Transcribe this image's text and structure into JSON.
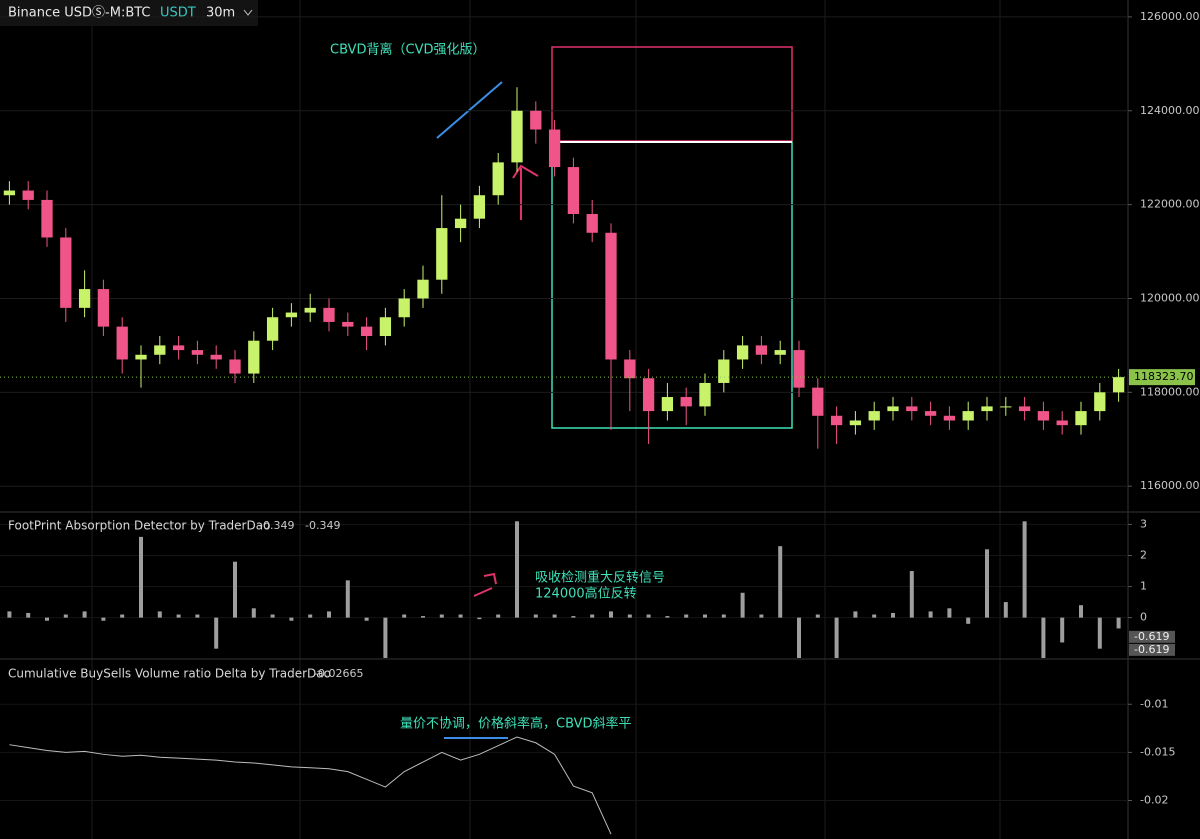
{
  "toolbar": {
    "symbol": "Binance USDⓈ-M:BTC",
    "quote": "USDT",
    "interval": "30m"
  },
  "chart_data": [
    {
      "type": "candlestick",
      "annotations": [
        "CBVD背离（CVD强化版）"
      ],
      "open": [
        122200,
        122300,
        122100,
        121300,
        119800,
        120200,
        119400,
        118700,
        118800,
        119000,
        118900,
        118800,
        118700,
        118400,
        119100,
        119600,
        119700,
        119800,
        119500,
        119400,
        119200,
        119600,
        120000,
        120400,
        121500,
        121700,
        122200,
        122900,
        124000,
        123600,
        122800,
        121800,
        121400,
        118700,
        118300,
        117600,
        117900,
        117700,
        118200,
        118700,
        119000,
        118800,
        118900,
        118100,
        117500,
        117300,
        117400,
        117600,
        117700,
        117600,
        117500,
        117400,
        117600,
        117700,
        117700,
        117600,
        117400,
        117300,
        117600,
        118000
      ],
      "high": [
        122500,
        122500,
        122300,
        121500,
        120600,
        120400,
        119600,
        119000,
        119200,
        119200,
        119100,
        119000,
        118900,
        119300,
        119800,
        119900,
        120100,
        120000,
        119700,
        119600,
        119800,
        120200,
        120700,
        122200,
        122000,
        122400,
        123100,
        124500,
        124200,
        123800,
        123000,
        122100,
        121600,
        118900,
        118500,
        118200,
        118100,
        118400,
        118900,
        119200,
        119200,
        119100,
        119100,
        118300,
        117700,
        117600,
        117800,
        117900,
        117900,
        117800,
        117700,
        117800,
        117900,
        117900,
        117900,
        117800,
        117600,
        117800,
        118200,
        118500
      ],
      "low": [
        122000,
        121900,
        121100,
        119500,
        119600,
        119200,
        118400,
        118100,
        118600,
        118700,
        118600,
        118500,
        118200,
        118200,
        118900,
        119400,
        119500,
        119300,
        119200,
        118900,
        119000,
        119400,
        119800,
        120100,
        121200,
        121500,
        122000,
        122700,
        123300,
        122600,
        121600,
        121200,
        117200,
        117600,
        116900,
        117400,
        117300,
        117500,
        118000,
        118500,
        118600,
        118600,
        117900,
        116800,
        116900,
        117100,
        117200,
        117400,
        117400,
        117300,
        117200,
        117200,
        117400,
        117500,
        117400,
        117200,
        117100,
        117100,
        117400,
        117800
      ],
      "close": [
        122300,
        122100,
        121300,
        119800,
        120200,
        119400,
        118700,
        118800,
        119000,
        118900,
        118800,
        118700,
        118400,
        119100,
        119600,
        119700,
        119800,
        119500,
        119400,
        119200,
        119600,
        120000,
        120400,
        121500,
        121700,
        122200,
        122900,
        124000,
        123600,
        122800,
        121800,
        121400,
        118700,
        118300,
        117600,
        117900,
        117700,
        118200,
        118700,
        119000,
        118800,
        118900,
        118100,
        117500,
        117300,
        117400,
        117600,
        117700,
        117600,
        117500,
        117400,
        117600,
        117700,
        117700,
        117600,
        117400,
        117300,
        117600,
        118000,
        118323.7
      ],
      "up_color": "#c8f26a",
      "down_color": "#f0558a",
      "ylim": [
        115450,
        126360
      ],
      "yticks": [
        {
          "value": 116000,
          "label": "116000.00"
        },
        {
          "value": 118000,
          "label": "118000.00"
        },
        {
          "value": 120000,
          "label": "120000.00"
        },
        {
          "value": 122000,
          "label": "122000.00"
        },
        {
          "value": 124000,
          "label": "124000.00"
        },
        {
          "value": 126000,
          "label": "126000.00"
        }
      ],
      "last_price": {
        "value": 118323.7,
        "label": "118323.70"
      },
      "grid": true
    },
    {
      "type": "bar",
      "title": "FootPrint Absorption Detector by TraderDao",
      "header_values": [
        -0.349,
        -0.349
      ],
      "annotations": [
        "吸收检测重大反转信号",
        "124000高位反转"
      ],
      "values": [
        0.2,
        0.15,
        -0.1,
        0.1,
        0.2,
        -0.1,
        0.1,
        2.6,
        0.2,
        0.1,
        0.1,
        -1.0,
        1.8,
        0.3,
        0.1,
        -0.1,
        0.1,
        0.2,
        1.2,
        -0.1,
        -1.3,
        0.1,
        0.05,
        0.1,
        0.1,
        -0.05,
        0.1,
        3.1,
        0.1,
        0.1,
        0.05,
        0.1,
        0.2,
        0.1,
        0.1,
        0.05,
        0.1,
        0.1,
        0.1,
        0.8,
        0.1,
        2.3,
        -1.3,
        0.1,
        -1.3,
        0.2,
        0.1,
        0.15,
        1.5,
        0.2,
        0.3,
        -0.2,
        2.2,
        0.5,
        3.1,
        -1.3,
        -0.8,
        0.4,
        -1.0,
        -0.349
      ],
      "color": "#9e9e9e",
      "ylim": [
        -1.3,
        3.4
      ],
      "yticks": [
        0,
        1,
        2,
        3
      ],
      "tags": [
        -0.619,
        -0.619
      ]
    },
    {
      "type": "line",
      "title": "Cumulative BuySells Volume ratio Delta by TraderDao",
      "header_values": [
        -0.02665
      ],
      "annotations": [
        "量价不协调，价格斜率高，CBVD斜率平"
      ],
      "values": [
        -0.0142,
        -0.0145,
        -0.0148,
        -0.015,
        -0.0149,
        -0.0152,
        -0.0154,
        -0.0153,
        -0.0155,
        -0.0156,
        -0.0157,
        -0.0158,
        -0.016,
        -0.0161,
        -0.0163,
        -0.0165,
        -0.0166,
        -0.0167,
        -0.017,
        -0.0178,
        -0.0186,
        -0.017,
        -0.016,
        -0.015,
        -0.0158,
        -0.0152,
        -0.0143,
        -0.0134,
        -0.014,
        -0.0152,
        -0.0185,
        -0.0192,
        -0.0235,
        null,
        null,
        null,
        null,
        null,
        null,
        null,
        null,
        null,
        null,
        null,
        null,
        null,
        null,
        null,
        null,
        null,
        null,
        null,
        null,
        null,
        null,
        null,
        null,
        null,
        null,
        null
      ],
      "color": "#bdbdbd",
      "ylim": [
        -0.024,
        -0.0054
      ],
      "yticks": [
        -0.01,
        -0.015,
        -0.02
      ]
    }
  ]
}
